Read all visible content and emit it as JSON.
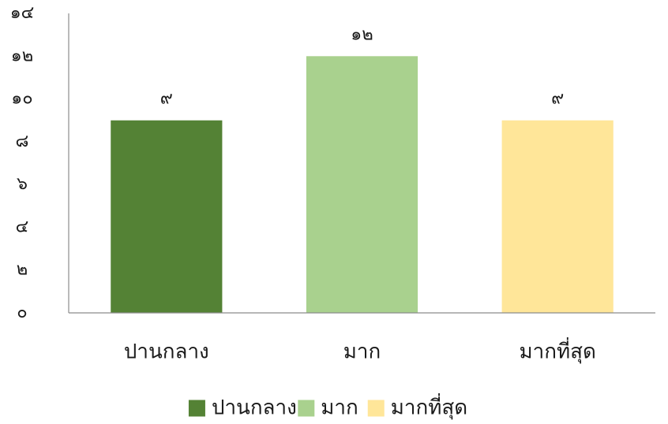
{
  "chart_data": {
    "type": "bar",
    "categories": [
      "ปานกลาง",
      "มาก",
      "มากที่สุด"
    ],
    "values": [
      9,
      12,
      9
    ],
    "value_labels": [
      "๙",
      "๑๒",
      "๙"
    ],
    "colors": [
      "#548235",
      "#A9D18E",
      "#FFE699"
    ],
    "ylim": [
      0,
      14
    ],
    "yticks": [
      0,
      2,
      4,
      6,
      8,
      10,
      12,
      14
    ],
    "ytick_labels": [
      "๐",
      "๒",
      "๔",
      "๖",
      "๘",
      "๑๐",
      "๑๒",
      "๑๔"
    ],
    "xlabel": "",
    "ylabel": "",
    "grid": false,
    "legend": {
      "position": "bottom",
      "entries": [
        "ปานกลาง",
        "มาก",
        "มากที่สุด"
      ]
    }
  }
}
